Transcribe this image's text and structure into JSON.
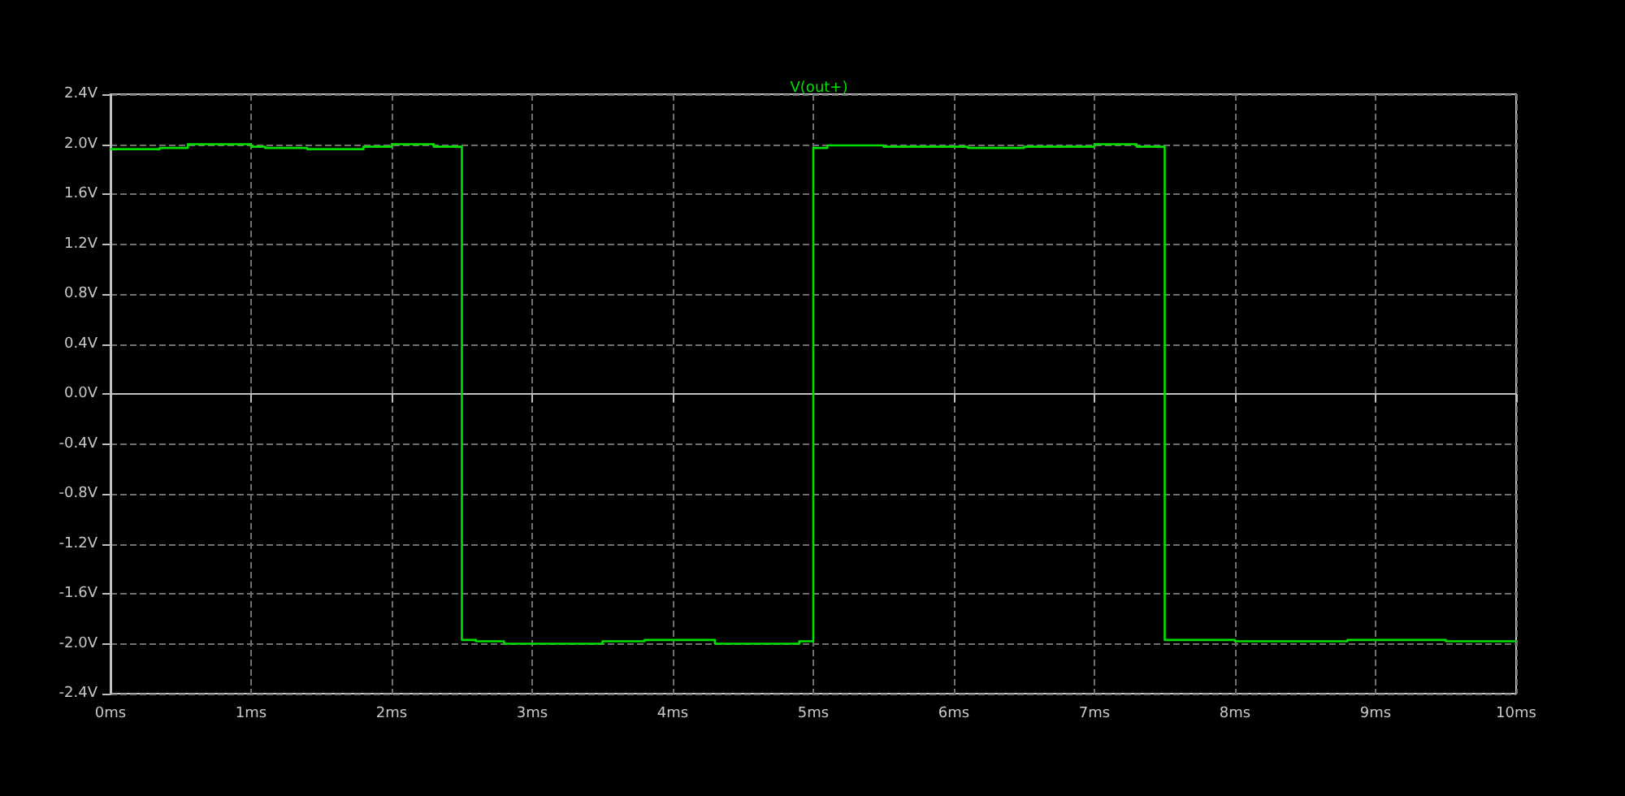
{
  "chart_data": {
    "type": "step",
    "title": "V(out+)",
    "x": [
      0,
      0.35,
      0.55,
      1.0,
      1.1,
      1.4,
      1.8,
      2.0,
      2.3,
      2.5,
      2.6,
      2.8,
      3.5,
      3.8,
      4.3,
      4.9,
      5.0,
      5.1,
      5.5,
      6.1,
      6.5,
      7.0,
      7.3,
      7.5,
      8.0,
      8.8,
      9.5,
      10.0
    ],
    "series": [
      {
        "color": "#00e000",
        "values": [
          1.96,
          1.97,
          2.0,
          1.98,
          1.97,
          1.96,
          1.98,
          2.0,
          1.98,
          -1.97,
          -1.98,
          -2.0,
          -1.98,
          -1.97,
          -2.0,
          -1.98,
          1.97,
          1.99,
          1.98,
          1.97,
          1.98,
          2.0,
          1.98,
          -1.97,
          -1.98,
          -1.97,
          -1.98,
          -1.98
        ]
      }
    ],
    "xlim": [
      0,
      10
    ],
    "xticks": [
      {
        "value": 0,
        "label": "0ms"
      },
      {
        "value": 1,
        "label": "1ms"
      },
      {
        "value": 2,
        "label": "2ms"
      },
      {
        "value": 3,
        "label": "3ms"
      },
      {
        "value": 4,
        "label": "4ms"
      },
      {
        "value": 5,
        "label": "5ms"
      },
      {
        "value": 6,
        "label": "6ms"
      },
      {
        "value": 7,
        "label": "7ms"
      },
      {
        "value": 8,
        "label": "8ms"
      },
      {
        "value": 9,
        "label": "9ms"
      },
      {
        "value": 10,
        "label": "10ms"
      }
    ],
    "ylim": [
      -2.4,
      2.4
    ],
    "yticks": [
      {
        "value": -2.4,
        "label": "-2.4V"
      },
      {
        "value": -2.0,
        "label": "-2.0V"
      },
      {
        "value": -1.6,
        "label": "-1.6V"
      },
      {
        "value": -1.2,
        "label": "-1.2V"
      },
      {
        "value": -0.8,
        "label": "-0.8V"
      },
      {
        "value": -0.4,
        "label": "-0.4V"
      },
      {
        "value": 0,
        "label": "0.0V"
      },
      {
        "value": 0.4,
        "label": "0.4V"
      },
      {
        "value": 0.8,
        "label": "0.8V"
      },
      {
        "value": 1.2,
        "label": "1.2V"
      },
      {
        "value": 1.6,
        "label": "1.6V"
      },
      {
        "value": 2.0,
        "label": "2.0V"
      },
      {
        "value": 2.4,
        "label": "2.4V"
      }
    ],
    "grid": true,
    "marker": "none",
    "line_style": "solid"
  }
}
